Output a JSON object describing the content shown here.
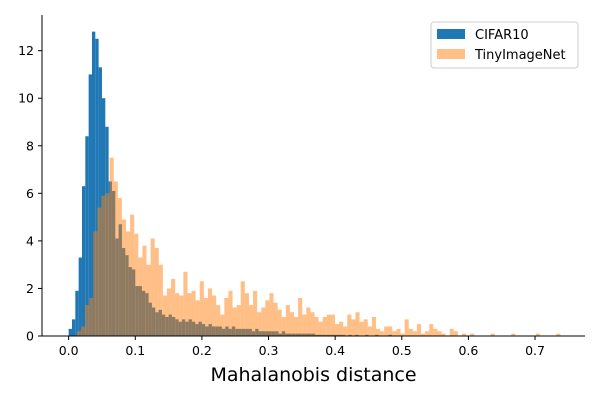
{
  "chart_data": {
    "type": "bar",
    "xlabel": "Mahalanobis distance",
    "ylabel": "",
    "xlim": [
      -0.04,
      0.775
    ],
    "ylim": [
      0,
      13.5
    ],
    "x_ticks": [
      0.0,
      0.1,
      0.2,
      0.3,
      0.4,
      0.5,
      0.6,
      0.7
    ],
    "x_tick_labels": [
      "0.0",
      "0.1",
      "0.2",
      "0.3",
      "0.4",
      "0.5",
      "0.6",
      "0.7"
    ],
    "y_ticks": [
      0,
      2,
      4,
      6,
      8,
      10,
      12
    ],
    "y_tick_labels": [
      "0",
      "2",
      "4",
      "6",
      "8",
      "10",
      "12"
    ],
    "grid": false,
    "legend_position": "top-right",
    "series": [
      {
        "name": "CIFAR10",
        "color": "#1f77b4",
        "opacity": 1.0,
        "bin_start": 0.0,
        "bin_width": 0.005,
        "values": [
          0.3,
          0.7,
          1.9,
          3.3,
          6.3,
          8.4,
          11.0,
          12.8,
          12.5,
          11.3,
          10.0,
          8.8,
          6.5,
          6.1,
          4.1,
          4.7,
          3.7,
          3.4,
          2.9,
          2.8,
          2.1,
          2.1,
          1.9,
          1.8,
          1.4,
          1.2,
          1.0,
          1.1,
          0.9,
          0.8,
          0.9,
          0.8,
          0.7,
          0.6,
          0.7,
          0.6,
          0.7,
          0.6,
          0.5,
          0.6,
          0.5,
          0.4,
          0.5,
          0.4,
          0.4,
          0.4,
          0.3,
          0.4,
          0.3,
          0.4,
          0.3,
          0.3,
          0.3,
          0.3,
          0.3,
          0.2,
          0.3,
          0.2,
          0.2,
          0.2,
          0.2,
          0.2,
          0.2,
          0.1,
          0.2,
          0.1,
          0.1,
          0.1,
          0.1,
          0.1,
          0.1,
          0.1,
          0.1,
          0.1,
          0.05,
          0.05,
          0.05,
          0.05,
          0.05,
          0.05,
          0.05,
          0.05,
          0.05,
          0.0,
          0.05,
          0.0,
          0.05,
          0.0,
          0.0,
          0.05,
          0.0,
          0.0,
          0.05,
          0.0,
          0.0,
          0.0,
          0.05,
          0.0,
          0.0,
          0.0,
          0.0,
          0.0,
          0.0,
          0.0,
          0.0,
          0.0,
          0.0,
          0.0,
          0.0,
          0.0,
          0.0,
          0.0,
          0.0,
          0.0,
          0.0,
          0.0,
          0.0,
          0.0,
          0.0,
          0.0
        ]
      },
      {
        "name": "TinyImageNet",
        "color": "#ff7f0e",
        "opacity": 0.5,
        "bin_start": 0.0,
        "bin_width": 0.00615,
        "values": [
          0.0,
          0.0,
          0.2,
          0.4,
          1.3,
          1.6,
          4.4,
          5.4,
          5.9,
          6.0,
          7.5,
          6.5,
          5.8,
          4.9,
          4.4,
          5.1,
          4.3,
          3.3,
          3.8,
          3.0,
          4.1,
          3.7,
          3.0,
          1.7,
          2.0,
          2.4,
          1.8,
          1.7,
          2.7,
          1.8,
          1.9,
          1.5,
          2.3,
          1.6,
          2.0,
          1.7,
          1.3,
          0.9,
          1.6,
          1.9,
          1.2,
          1.3,
          2.3,
          1.8,
          1.3,
          1.9,
          1.0,
          1.2,
          1.5,
          1.8,
          1.4,
          1.1,
          0.8,
          1.3,
          1.0,
          0.8,
          1.6,
          0.9,
          1.2,
          1.0,
          0.8,
          0.6,
          0.8,
          0.9,
          0.9,
          0.5,
          0.6,
          0.4,
          0.9,
          0.7,
          1.0,
          0.6,
          0.7,
          0.4,
          0.8,
          0.3,
          0.2,
          0.4,
          0.4,
          0.2,
          0.3,
          0.1,
          0.7,
          0.3,
          0.2,
          0.5,
          0.1,
          0.2,
          0.5,
          0.3,
          0.2,
          0.1,
          0.0,
          0.3,
          0.2,
          0.0,
          0.1,
          0.0,
          0.1,
          0.0,
          0.0,
          0.0,
          0.0,
          0.1,
          0.0,
          0.0,
          0.0,
          0.0,
          0.1,
          0.0,
          0.0,
          0.0,
          0.0,
          0.0,
          0.1,
          0.0,
          0.0,
          0.0,
          0.0,
          0.1
        ]
      }
    ]
  }
}
